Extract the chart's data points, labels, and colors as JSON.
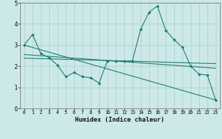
{
  "xlabel": "Humidex (Indice chaleur)",
  "ylabel": "",
  "xlim": [
    -0.5,
    23.5
  ],
  "ylim": [
    0,
    5
  ],
  "xticks": [
    0,
    1,
    2,
    3,
    4,
    5,
    6,
    7,
    8,
    9,
    10,
    11,
    12,
    13,
    14,
    15,
    16,
    17,
    18,
    19,
    20,
    21,
    22,
    23
  ],
  "yticks": [
    0,
    1,
    2,
    3,
    4,
    5
  ],
  "color": "#1a7a6e",
  "bg_color": "#cce8e8",
  "grid_color": "#aacccc",
  "line1_x": [
    0,
    1,
    2,
    3,
    4,
    5,
    6,
    7,
    8,
    9,
    10,
    11,
    12,
    13,
    14,
    15,
    16,
    17,
    18,
    19,
    20,
    21,
    22,
    23
  ],
  "line1_y": [
    3.0,
    3.5,
    2.6,
    2.4,
    2.05,
    1.5,
    1.7,
    1.5,
    1.45,
    1.2,
    2.25,
    2.25,
    2.25,
    2.25,
    3.75,
    4.55,
    4.85,
    3.7,
    3.25,
    2.9,
    2.0,
    1.62,
    1.58,
    0.4
  ],
  "line2_x": [
    0,
    23
  ],
  "line2_y": [
    3.0,
    0.4
  ],
  "line3_x": [
    0,
    23
  ],
  "line3_y": [
    2.55,
    1.9
  ],
  "line4_x": [
    0,
    23
  ],
  "line4_y": [
    2.38,
    2.12
  ]
}
